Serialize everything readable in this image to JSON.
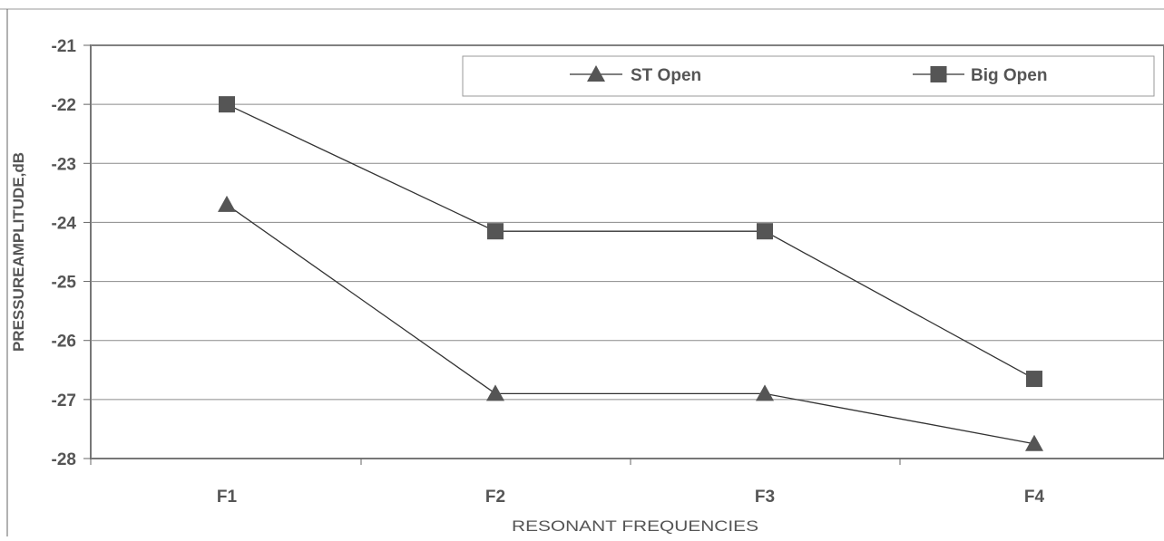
{
  "chart_data": {
    "type": "line",
    "title": "",
    "xlabel": "RESONANT FREQUENCIES",
    "ylabel": "PRESSUREAMPLITUDE,dB",
    "categories": [
      "F1",
      "F2",
      "F3",
      "F4"
    ],
    "ylim": [
      -28,
      -21
    ],
    "yticks": [
      -21,
      -22,
      -23,
      -24,
      -25,
      -26,
      -27,
      -28
    ],
    "grid": true,
    "legend_position": "top-right",
    "series": [
      {
        "name": "ST Open",
        "marker": "triangle",
        "color": "#555555",
        "values": [
          -23.7,
          -26.9,
          -26.9,
          -27.75
        ]
      },
      {
        "name": "Big Open",
        "marker": "square",
        "color": "#555555",
        "values": [
          -22.0,
          -24.15,
          -24.15,
          -26.65
        ]
      }
    ]
  }
}
